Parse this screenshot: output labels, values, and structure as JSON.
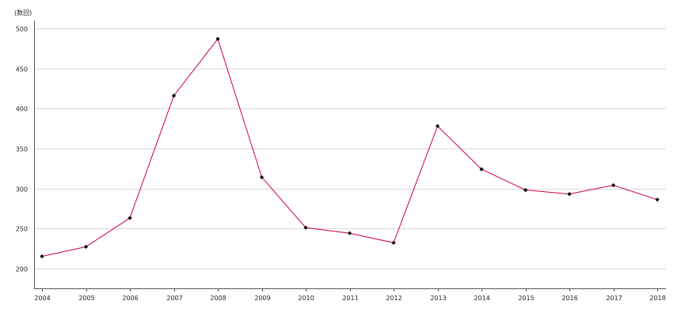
{
  "chart_data": {
    "type": "line",
    "title": "",
    "xlabel": "",
    "ylabel": "(数回)",
    "categories": [
      "2004",
      "2005",
      "2006",
      "2007",
      "2008",
      "2009",
      "2010",
      "2011",
      "2012",
      "2013",
      "2014",
      "2015",
      "2016",
      "2017",
      "2018"
    ],
    "series": [
      {
        "values": [
          215,
          227,
          263,
          416,
          487,
          314,
          251,
          244,
          232,
          378,
          324,
          298,
          293,
          304,
          286
        ],
        "color": "#cc0033",
        "marker_color": "#000000",
        "marker": "diamond"
      }
    ],
    "ylim": [
      175,
      510
    ],
    "yticks": [
      200,
      250,
      300,
      350,
      400,
      450,
      500
    ],
    "grid": true,
    "legend": "none"
  }
}
